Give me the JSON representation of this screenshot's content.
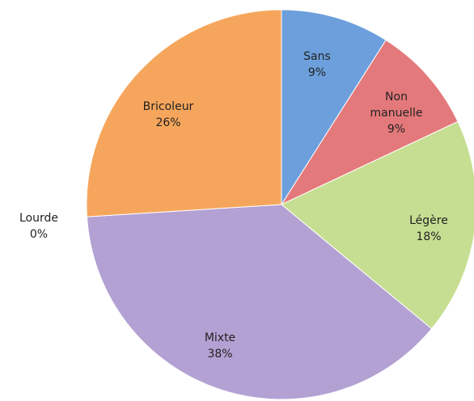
{
  "chart_data": {
    "type": "pie",
    "categories": [
      "Sans",
      "Non manuelle",
      "Légère",
      "Mixte",
      "Lourde",
      "Bricoleur"
    ],
    "values": [
      9,
      9,
      18,
      38,
      0,
      26
    ],
    "value_labels": [
      "9%",
      "9%",
      "18%",
      "38%",
      "0%",
      "26%"
    ],
    "colors": [
      "#6c9fdc",
      "#e4797b",
      "#c6de91",
      "#b3a1d3",
      "#9bbb59",
      "#f6a65c"
    ]
  }
}
